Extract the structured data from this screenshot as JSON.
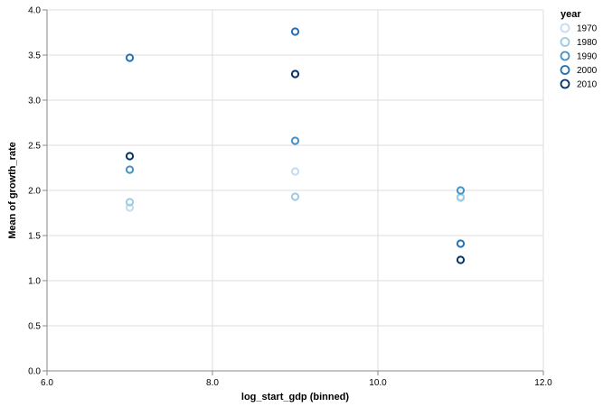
{
  "chart_data": {
    "type": "scatter",
    "title": "",
    "xlabel": "log_start_gdp (binned)",
    "ylabel": "Mean of growth_rate",
    "xlim": [
      6.0,
      12.0
    ],
    "ylim": [
      0.0,
      4.0
    ],
    "x_ticks": [
      "6.0",
      "8.0",
      "10.0",
      "12.0"
    ],
    "y_ticks": [
      "0.0",
      "0.5",
      "1.0",
      "1.5",
      "2.0",
      "2.5",
      "3.0",
      "3.5",
      "4.0"
    ],
    "grid": true,
    "legend": {
      "title": "year",
      "position": "top-right"
    },
    "series": [
      {
        "name": "1970",
        "color": "#c6dbef",
        "points": [
          {
            "x": 7,
            "y": 1.81
          },
          {
            "x": 9,
            "y": 2.21
          },
          {
            "x": 11,
            "y": 1.93
          }
        ]
      },
      {
        "name": "1980",
        "color": "#9ecae1",
        "points": [
          {
            "x": 7,
            "y": 1.87
          },
          {
            "x": 9,
            "y": 1.93
          },
          {
            "x": 11,
            "y": 1.92
          }
        ]
      },
      {
        "name": "1990",
        "color": "#4292c6",
        "points": [
          {
            "x": 7,
            "y": 2.23
          },
          {
            "x": 9,
            "y": 2.55
          },
          {
            "x": 11,
            "y": 2.0
          }
        ]
      },
      {
        "name": "2000",
        "color": "#2171b5",
        "points": [
          {
            "x": 7,
            "y": 3.47
          },
          {
            "x": 9,
            "y": 3.76
          },
          {
            "x": 11,
            "y": 1.41
          }
        ]
      },
      {
        "name": "2010",
        "color": "#08306b",
        "points": [
          {
            "x": 7,
            "y": 2.38
          },
          {
            "x": 9,
            "y": 3.29
          },
          {
            "x": 11,
            "y": 1.23
          }
        ]
      }
    ]
  }
}
